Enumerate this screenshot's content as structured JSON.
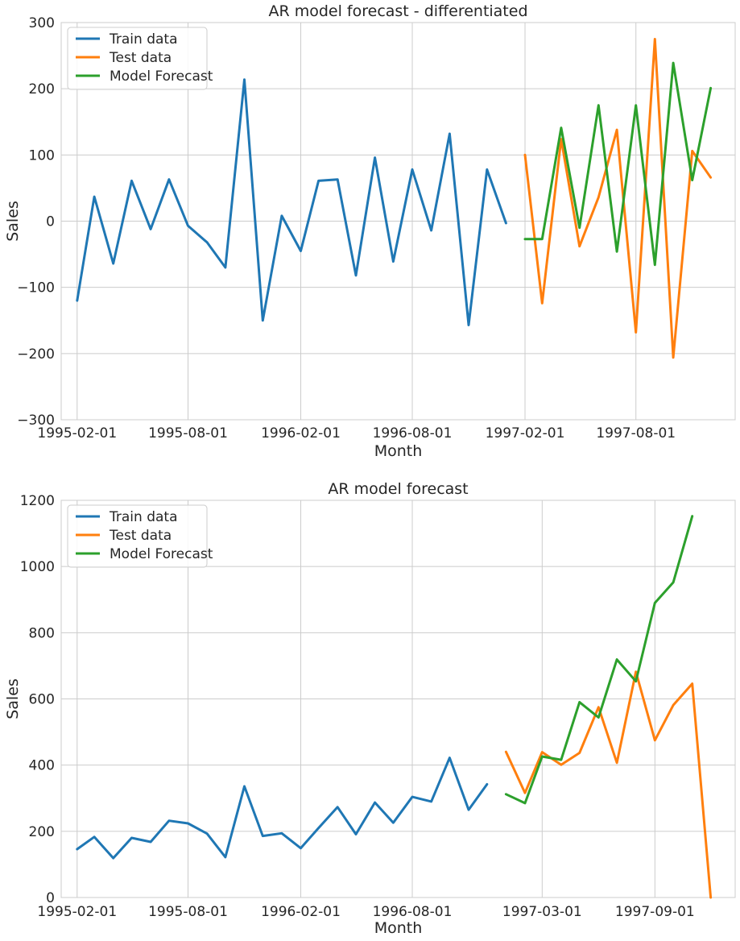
{
  "chart_data": [
    {
      "type": "line",
      "title": "AR model forecast - differentiated",
      "xlabel": "Month",
      "ylabel": "Sales",
      "ylim": [
        -300,
        300
      ],
      "yticks": [
        -300,
        -200,
        -100,
        0,
        100,
        200,
        300
      ],
      "ytick_labels": [
        "−300",
        "−200",
        "−100",
        "0",
        "100",
        "200",
        "300"
      ],
      "xlim": [
        "1995-01-06",
        "1998-01-10"
      ],
      "xticks": [
        "1995-02-01",
        "1995-08-01",
        "1996-02-01",
        "1996-08-01",
        "1997-02-01",
        "1997-08-01"
      ],
      "grid": true,
      "legend": "upper-left",
      "series": [
        {
          "name": "Train data",
          "color": "#1f77b4",
          "x": [
            "1995-02-01",
            "1995-03-01",
            "1995-04-01",
            "1995-05-01",
            "1995-06-01",
            "1995-07-01",
            "1995-08-01",
            "1995-09-01",
            "1995-10-01",
            "1995-11-01",
            "1995-12-01",
            "1996-01-01",
            "1996-02-01",
            "1996-03-01",
            "1996-04-01",
            "1996-05-01",
            "1996-06-01",
            "1996-07-01",
            "1996-08-01",
            "1996-09-01",
            "1996-10-01",
            "1996-11-01",
            "1996-12-01",
            "1997-01-01"
          ],
          "y": [
            -120,
            37,
            -64,
            61,
            -12,
            63,
            -7,
            -32,
            -70,
            214,
            -150,
            8,
            -45,
            61,
            63,
            -82,
            96,
            -61,
            78,
            -14,
            132,
            -157,
            78,
            -3
          ]
        },
        {
          "name": "Test data",
          "color": "#ff7f0e",
          "x": [
            "1997-02-01",
            "1997-03-01",
            "1997-04-01",
            "1997-05-01",
            "1997-06-01",
            "1997-07-01",
            "1997-08-01",
            "1997-09-01",
            "1997-10-01",
            "1997-11-01",
            "1997-12-01"
          ],
          "y": [
            100,
            -124,
            124,
            -38,
            36,
            138,
            -168,
            275,
            -206,
            106,
            66
          ]
        },
        {
          "name": "Model Forecast",
          "color": "#2ca02c",
          "x": [
            "1997-02-01",
            "1997-03-01",
            "1997-04-01",
            "1997-05-01",
            "1997-06-01",
            "1997-07-01",
            "1997-08-01",
            "1997-09-01",
            "1997-10-01",
            "1997-11-01",
            "1997-12-01"
          ],
          "y": [
            -27,
            -27,
            141,
            -10,
            175,
            -46,
            175,
            -66,
            239,
            62,
            201
          ]
        }
      ]
    },
    {
      "type": "line",
      "title": "AR model forecast",
      "xlabel": "Month",
      "ylabel": "Sales",
      "ylim": [
        0,
        1200
      ],
      "yticks": [
        0,
        200,
        400,
        600,
        800,
        1000,
        1200
      ],
      "ytick_labels": [
        "0",
        "200",
        "400",
        "600",
        "800",
        "1000",
        "1200"
      ],
      "xlim": [
        "1995-01-06",
        "1998-01-10"
      ],
      "xticks": [
        "1995-02-01",
        "1995-08-01",
        "1996-02-01",
        "1996-08-01",
        "1997-03-01",
        "1997-09-01"
      ],
      "grid": true,
      "legend": "upper-left",
      "series": [
        {
          "name": "Train data",
          "color": "#1f77b4",
          "x": [
            "1995-02-01",
            "1995-03-01",
            "1995-04-01",
            "1995-05-01",
            "1995-06-01",
            "1995-07-01",
            "1995-08-01",
            "1995-09-01",
            "1995-10-01",
            "1995-11-01",
            "1995-12-01",
            "1996-01-01",
            "1996-02-01",
            "1996-03-01",
            "1996-04-01",
            "1996-05-01",
            "1996-06-01",
            "1996-07-01",
            "1996-08-01",
            "1996-09-01",
            "1996-10-01",
            "1996-11-01",
            "1996-12-01"
          ],
          "y": [
            146,
            183,
            119,
            180,
            168,
            232,
            224,
            193,
            122,
            336,
            186,
            194,
            149,
            210,
            273,
            191,
            287,
            226,
            304,
            290,
            422,
            265,
            342
          ]
        },
        {
          "name": "Test data",
          "color": "#ff7f0e",
          "x": [
            "1997-01-01",
            "1997-02-01",
            "1997-03-01",
            "1997-04-01",
            "1997-05-01",
            "1997-06-01",
            "1997-07-01",
            "1997-08-01",
            "1997-09-01",
            "1997-10-01",
            "1997-11-01",
            "1997-12-01"
          ],
          "y": [
            440,
            316,
            439,
            401,
            437,
            575,
            407,
            682,
            475,
            581,
            646,
            0
          ]
        },
        {
          "name": "Model Forecast",
          "color": "#2ca02c",
          "x": [
            "1997-01-01",
            "1997-02-01",
            "1997-03-01",
            "1997-04-01",
            "1997-05-01",
            "1997-06-01",
            "1997-07-01",
            "1997-08-01",
            "1997-09-01",
            "1997-10-01",
            "1997-11-01"
          ],
          "y": [
            312,
            285,
            426,
            416,
            590,
            544,
            719,
            653,
            890,
            952,
            1152
          ]
        }
      ]
    }
  ]
}
